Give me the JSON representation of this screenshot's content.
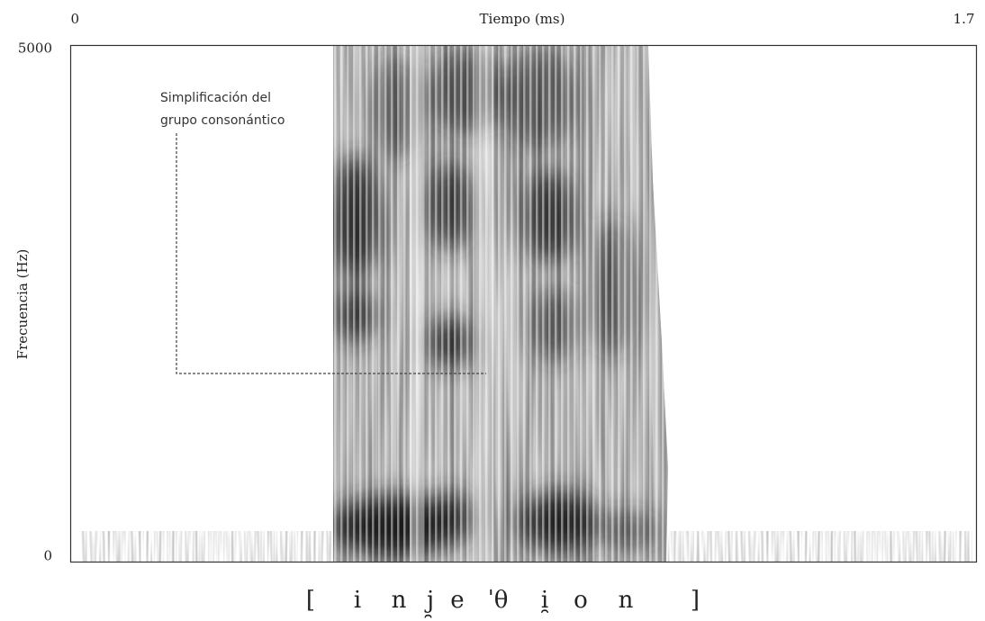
{
  "chart_data": {
    "type": "spectrogram",
    "xlabel": "Tiempo (ms)",
    "ylabel": "Frecuencia (Hz)",
    "xlim": [
      0,
      1.7
    ],
    "xticks": [
      0,
      1.7
    ],
    "ylim": [
      0,
      5000
    ],
    "yticks": [
      0,
      5000
    ],
    "annotation": [
      "Simplificación del",
      "grupo consonántico"
    ],
    "transcription": [
      "[",
      "i",
      "n",
      "j̯",
      "e",
      "ˈθ",
      "i̯",
      "o",
      "n",
      "]"
    ]
  }
}
